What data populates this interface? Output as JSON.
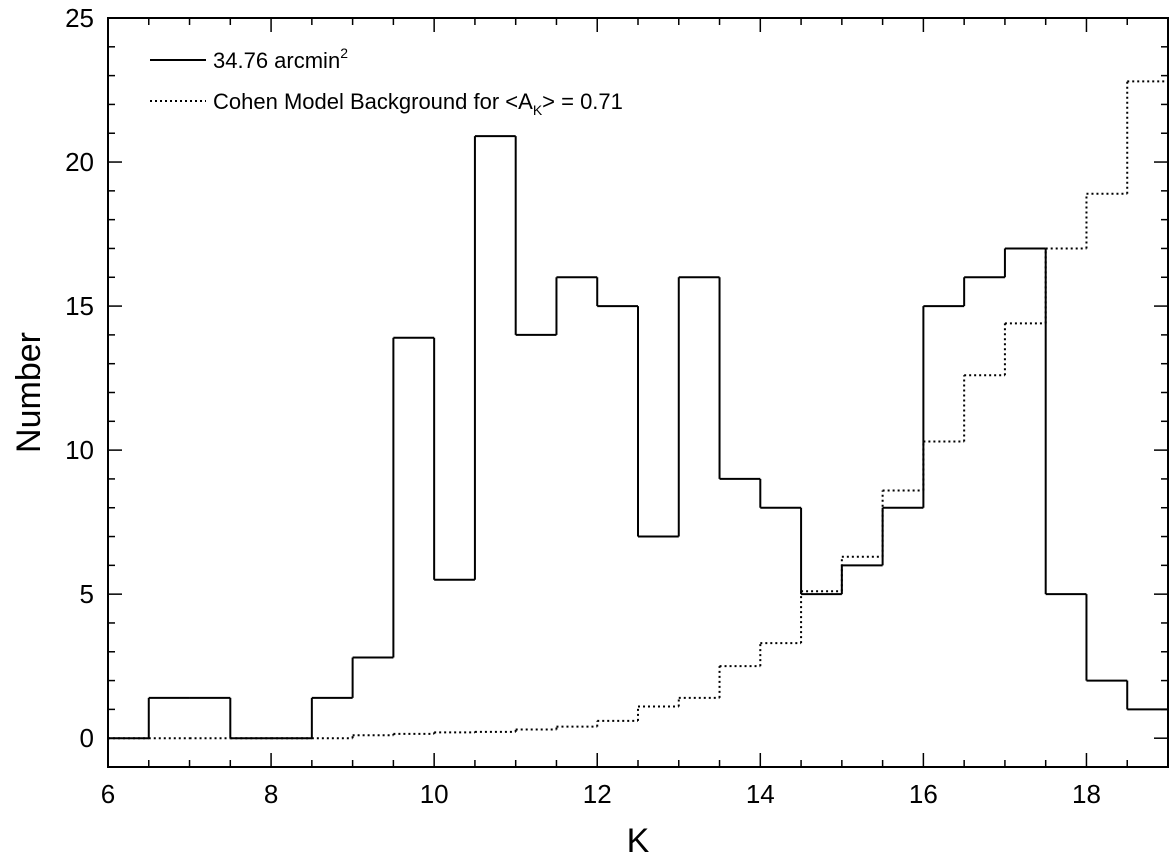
{
  "chart_data": {
    "type": "histogram-step",
    "xlabel": "K",
    "ylabel": "Number",
    "xlim": [
      6,
      19
    ],
    "ylim": [
      -1,
      25
    ],
    "xticks": [
      6,
      8,
      10,
      12,
      14,
      16,
      18
    ],
    "yticks": [
      0,
      5,
      10,
      15,
      20,
      25
    ],
    "x_minor_step": 0.5,
    "y_minor_step": 1,
    "grid": false,
    "legend_position": "top-left",
    "series": [
      {
        "name_main": "34.76 arcmin",
        "name_sup": "2",
        "line_style": "solid",
        "bins_left": [
          6.0,
          6.5,
          7.0,
          7.5,
          8.0,
          8.5,
          9.0,
          9.5,
          10.0,
          10.5,
          11.0,
          11.5,
          12.0,
          12.5,
          13.0,
          13.5,
          14.0,
          14.5,
          15.0,
          15.5,
          16.0,
          16.5,
          17.0,
          17.5,
          18.0,
          18.5
        ],
        "bin_width": 0.5,
        "values": [
          0,
          1.4,
          1.4,
          0,
          0,
          1.4,
          2.8,
          13.9,
          5.5,
          20.9,
          14,
          16,
          15,
          7,
          16,
          9,
          8,
          5,
          6,
          8,
          15,
          16,
          17,
          5,
          2,
          1
        ]
      },
      {
        "name_main": "Cohen Model Background for <A",
        "name_sub": "K",
        "name_tail": "> = 0.71",
        "line_style": "dotted",
        "bins_left": [
          6.0,
          6.5,
          7.0,
          7.5,
          8.0,
          8.5,
          9.0,
          9.5,
          10.0,
          10.5,
          11.0,
          11.5,
          12.0,
          12.5,
          13.0,
          13.5,
          14.0,
          14.5,
          15.0,
          15.5,
          16.0,
          16.5,
          17.0,
          17.5,
          18.0,
          18.5
        ],
        "bin_width": 0.5,
        "values": [
          0,
          0,
          0,
          0,
          0,
          0,
          0.1,
          0.15,
          0.2,
          0.22,
          0.3,
          0.4,
          0.6,
          1.1,
          1.4,
          2.5,
          3.3,
          5.1,
          6.3,
          8.6,
          10.3,
          12.6,
          14.4,
          17,
          18.9,
          22.8
        ]
      }
    ]
  }
}
